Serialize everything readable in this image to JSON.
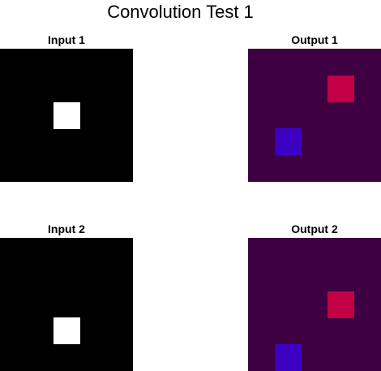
{
  "title": "Convolution Test 1",
  "grid_size": 5,
  "colors": {
    "input_background": "#000000",
    "input_active": "#ffffff",
    "output_background": "#3e0040",
    "output_red": "#c30045",
    "output_blue": "#3c00c3"
  },
  "panels": [
    {
      "label": "Input 1",
      "kind": "input",
      "cells": [
        {
          "row": 2,
          "col": 2,
          "color": "#ffffff"
        }
      ]
    },
    {
      "label": "Output 1",
      "kind": "output",
      "cells": [
        {
          "row": 1,
          "col": 3,
          "color": "#c30045"
        },
        {
          "row": 3,
          "col": 1,
          "color": "#3c00c3"
        }
      ]
    },
    {
      "label": "Input 2",
      "kind": "input",
      "cells": [
        {
          "row": 3,
          "col": 2,
          "color": "#ffffff"
        }
      ]
    },
    {
      "label": "Output 2",
      "kind": "output",
      "cells": [
        {
          "row": 2,
          "col": 3,
          "color": "#c30045"
        },
        {
          "row": 4,
          "col": 1,
          "color": "#3c00c3"
        }
      ]
    }
  ]
}
